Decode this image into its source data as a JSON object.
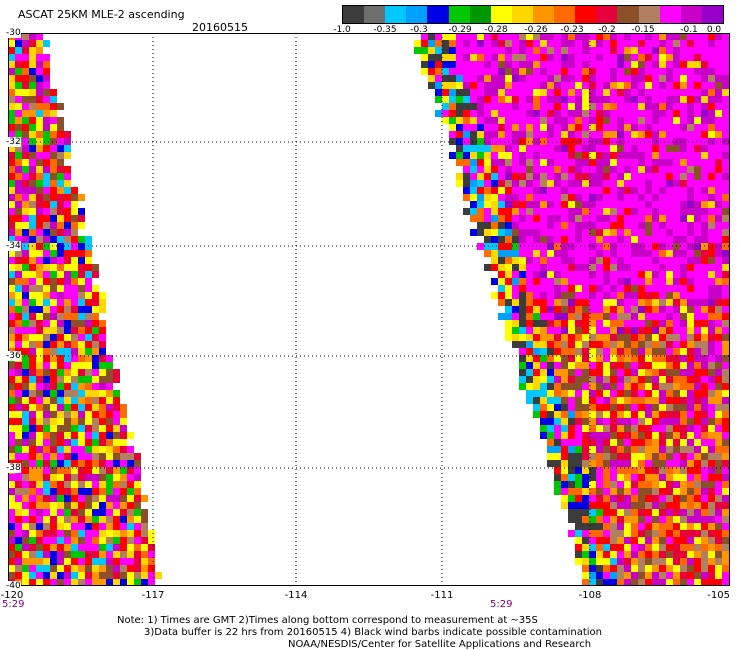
{
  "header": {
    "title": "ASCAT 25KM MLE-2 ascending",
    "date": "20160515"
  },
  "colorbar": {
    "colors": [
      "#3c3c3c",
      "#6e6e6e",
      "#00c8ff",
      "#00a0ff",
      "#0000e6",
      "#00c800",
      "#009600",
      "#ffff00",
      "#ffd700",
      "#ff9600",
      "#ff6a00",
      "#ff0000",
      "#e6003c",
      "#8c5028",
      "#b08060",
      "#ff00ff",
      "#c800c8",
      "#9600c8"
    ],
    "labels": [
      "-1.0",
      "-0.35",
      "-0.3",
      "-0.29",
      "-0.28",
      "-0.26",
      "-0.23",
      "-0.2",
      "-0.15",
      "-0.1",
      "0.0"
    ]
  },
  "axes": {
    "lat_labels": [
      "-30",
      "-32",
      "-34",
      "-36",
      "-38",
      "-40"
    ],
    "lon_labels": [
      "-120",
      "-117",
      "-114",
      "-111",
      "-108",
      "-105"
    ],
    "times": [
      "5:29",
      "5:29"
    ]
  },
  "notes": [
    "Note: 1) Times are GMT 2)Times along bottom correspond to measurement at ~35S",
    "3)Data buffer is 22 hrs from 20160515 4) Black wind barbs indicate possible contamination",
    "NOAA/NESDIS/Center for Satellite Applications and Research"
  ]
}
